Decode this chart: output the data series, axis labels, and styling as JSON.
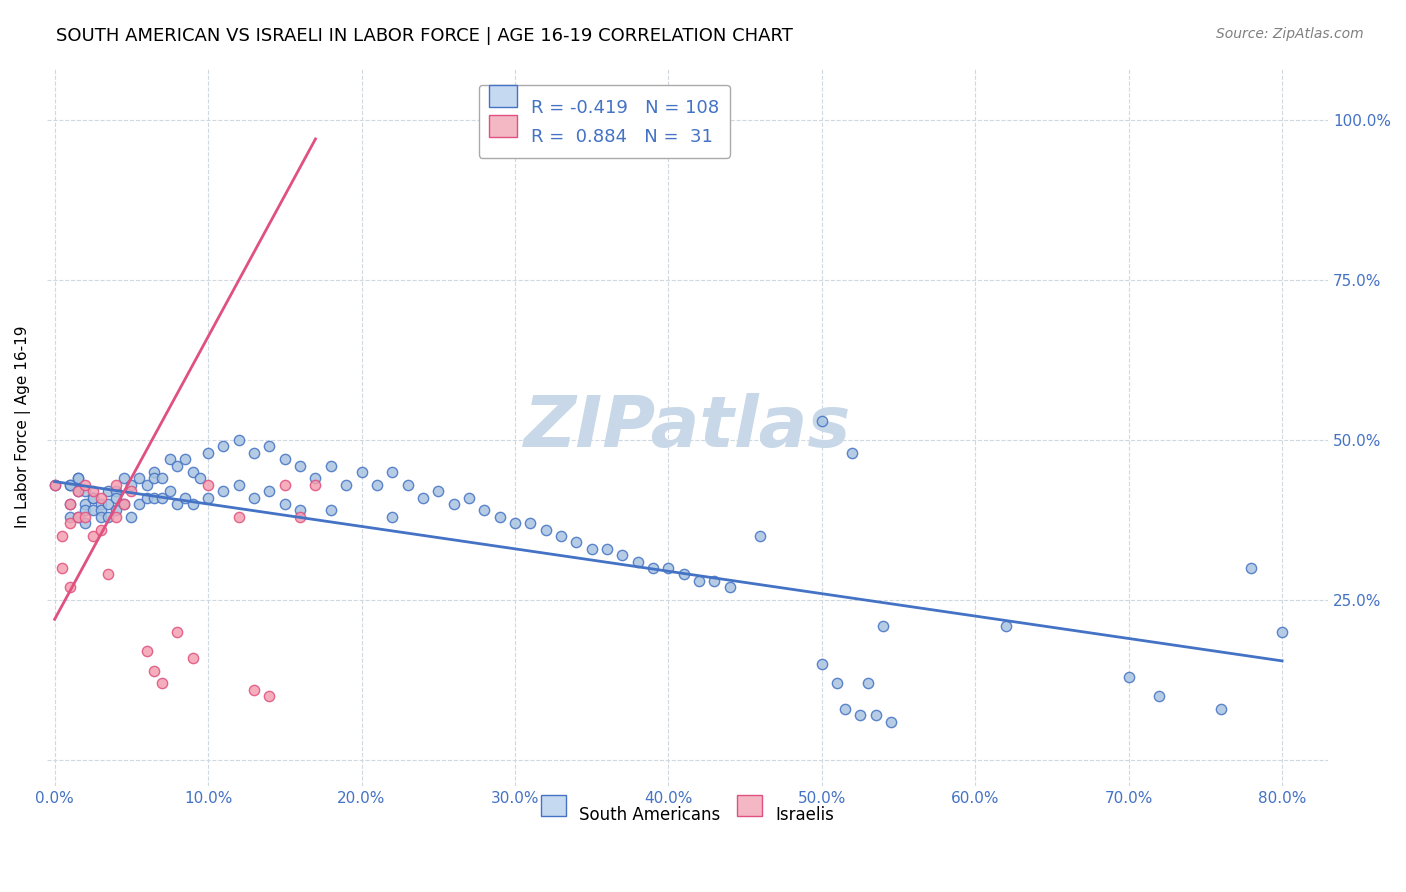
{
  "title": "SOUTH AMERICAN VS ISRAELI IN LABOR FORCE | AGE 16-19 CORRELATION CHART",
  "source": "Source: ZipAtlas.com",
  "ylabel": "In Labor Force | Age 16-19",
  "xlabel_ticks": [
    "0.0%",
    "10.0%",
    "20.0%",
    "30.0%",
    "40.0%",
    "50.0%",
    "60.0%",
    "70.0%",
    "80.0%"
  ],
  "ytick_labels": [
    "100.0%",
    "75.0%",
    "50.0%",
    "25.0%"
  ],
  "xlim": [
    -0.005,
    0.83
  ],
  "ylim": [
    -0.04,
    1.08
  ],
  "blue_R": "-0.419",
  "blue_N": "108",
  "pink_R": "0.884",
  "pink_N": "31",
  "blue_scatter_x": [
    0.0,
    0.01,
    0.01,
    0.01,
    0.01,
    0.015,
    0.015,
    0.015,
    0.015,
    0.02,
    0.02,
    0.02,
    0.02,
    0.025,
    0.025,
    0.025,
    0.03,
    0.03,
    0.03,
    0.035,
    0.035,
    0.035,
    0.04,
    0.04,
    0.04,
    0.045,
    0.045,
    0.05,
    0.05,
    0.055,
    0.055,
    0.06,
    0.06,
    0.065,
    0.065,
    0.065,
    0.07,
    0.07,
    0.075,
    0.075,
    0.08,
    0.08,
    0.085,
    0.085,
    0.09,
    0.09,
    0.095,
    0.1,
    0.1,
    0.11,
    0.11,
    0.12,
    0.12,
    0.13,
    0.13,
    0.14,
    0.14,
    0.15,
    0.15,
    0.16,
    0.16,
    0.17,
    0.18,
    0.18,
    0.19,
    0.2,
    0.21,
    0.22,
    0.22,
    0.23,
    0.24,
    0.25,
    0.26,
    0.27,
    0.28,
    0.29,
    0.3,
    0.31,
    0.32,
    0.33,
    0.34,
    0.35,
    0.36,
    0.37,
    0.38,
    0.39,
    0.4,
    0.41,
    0.42,
    0.43,
    0.44,
    0.46,
    0.5,
    0.5,
    0.52,
    0.54,
    0.62,
    0.7,
    0.72,
    0.76,
    0.78,
    0.8,
    0.51,
    0.53,
    0.515,
    0.525,
    0.535,
    0.545
  ],
  "blue_scatter_y": [
    0.43,
    0.43,
    0.43,
    0.4,
    0.38,
    0.44,
    0.44,
    0.42,
    0.38,
    0.42,
    0.4,
    0.39,
    0.37,
    0.41,
    0.41,
    0.39,
    0.4,
    0.39,
    0.38,
    0.42,
    0.4,
    0.38,
    0.42,
    0.41,
    0.39,
    0.44,
    0.4,
    0.43,
    0.38,
    0.44,
    0.4,
    0.43,
    0.41,
    0.45,
    0.44,
    0.41,
    0.44,
    0.41,
    0.47,
    0.42,
    0.46,
    0.4,
    0.47,
    0.41,
    0.45,
    0.4,
    0.44,
    0.48,
    0.41,
    0.49,
    0.42,
    0.5,
    0.43,
    0.48,
    0.41,
    0.49,
    0.42,
    0.47,
    0.4,
    0.46,
    0.39,
    0.44,
    0.46,
    0.39,
    0.43,
    0.45,
    0.43,
    0.45,
    0.38,
    0.43,
    0.41,
    0.42,
    0.4,
    0.41,
    0.39,
    0.38,
    0.37,
    0.37,
    0.36,
    0.35,
    0.34,
    0.33,
    0.33,
    0.32,
    0.31,
    0.3,
    0.3,
    0.29,
    0.28,
    0.28,
    0.27,
    0.35,
    0.53,
    0.15,
    0.48,
    0.21,
    0.21,
    0.13,
    0.1,
    0.08,
    0.3,
    0.2,
    0.12,
    0.12,
    0.08,
    0.07,
    0.07,
    0.06
  ],
  "pink_scatter_x": [
    0.0,
    0.005,
    0.005,
    0.01,
    0.01,
    0.01,
    0.015,
    0.015,
    0.02,
    0.02,
    0.025,
    0.025,
    0.03,
    0.03,
    0.035,
    0.04,
    0.04,
    0.045,
    0.05,
    0.06,
    0.065,
    0.07,
    0.08,
    0.09,
    0.1,
    0.12,
    0.13,
    0.14,
    0.15,
    0.16,
    0.17
  ],
  "pink_scatter_y": [
    0.43,
    0.35,
    0.3,
    0.4,
    0.37,
    0.27,
    0.42,
    0.38,
    0.43,
    0.38,
    0.42,
    0.35,
    0.41,
    0.36,
    0.29,
    0.43,
    0.38,
    0.4,
    0.42,
    0.17,
    0.14,
    0.12,
    0.2,
    0.16,
    0.43,
    0.38,
    0.11,
    0.1,
    0.43,
    0.38,
    0.43
  ],
  "blue_trend_x": [
    0.0,
    0.8
  ],
  "blue_trend_y": [
    0.435,
    0.155
  ],
  "pink_trend_x": [
    0.0,
    0.17
  ],
  "pink_trend_y": [
    0.22,
    0.97
  ],
  "blue_scatter_color": "#a8c4e0",
  "pink_scatter_color": "#f4a0b0",
  "blue_line_color": "#4472c4",
  "pink_line_color": "#e05080",
  "legend_box_blue_fill": "#c5d9f1",
  "legend_box_pink_fill": "#f4b8c4",
  "text_color_blue": "#4472c4",
  "watermark_color": "#c8d8e8",
  "background_color": "#ffffff",
  "grid_color": "#d0d8e0",
  "title_fontsize": 13,
  "source_fontsize": 10,
  "label_fontsize": 11,
  "tick_fontsize": 11
}
